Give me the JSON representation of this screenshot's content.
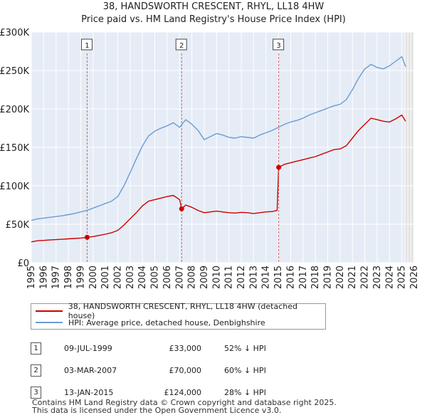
{
  "title_line1": "38, HANDSWORTH CRESCENT, RHYL, LL18 4HW",
  "title_line2": "Price paid vs. HM Land Registry's House Price Index (HPI)",
  "legend": {
    "property_label": "38, HANDSWORTH CRESCENT, RHYL, LL18 4HW (detached house)",
    "hpi_label": "HPI: Average price, detached house, Denbighshire"
  },
  "colors": {
    "property": "#cc0000",
    "hpi": "#6b9bd2",
    "shade": "#e5ecf6",
    "grid": "#ffffff"
  },
  "sales": [
    {
      "num": "1",
      "date": "09-JUL-1999",
      "price": "£33,000",
      "hpi_rel": "52% ↓ HPI"
    },
    {
      "num": "2",
      "date": "03-MAR-2007",
      "price": "£70,000",
      "hpi_rel": "60% ↓ HPI"
    },
    {
      "num": "3",
      "date": "13-JAN-2015",
      "price": "£124,000",
      "hpi_rel": "28% ↓ HPI"
    }
  ],
  "footer": {
    "line1": "Contains HM Land Registry data © Crown copyright and database right 2025.",
    "line2": "This data is licensed under the Open Government Licence v3.0."
  },
  "chart_data": {
    "type": "line",
    "title": "38, HANDSWORTH CRESCENT, RHYL, LL18 4HW — Price paid vs. HM Land Registry's House Price Index (HPI)",
    "xlabel": "",
    "ylabel": "",
    "xlim": [
      1995,
      2026
    ],
    "ylim": [
      0,
      300000
    ],
    "x_ticks": [
      1995,
      1996,
      1997,
      1998,
      1999,
      2000,
      2001,
      2002,
      2003,
      2004,
      2005,
      2006,
      2007,
      2008,
      2009,
      2010,
      2011,
      2012,
      2013,
      2014,
      2015,
      2016,
      2017,
      2018,
      2019,
      2020,
      2021,
      2022,
      2023,
      2024,
      2025,
      2026
    ],
    "y_ticks": [
      {
        "value": 0,
        "label": "£0"
      },
      {
        "value": 50000,
        "label": "£50K"
      },
      {
        "value": 100000,
        "label": "£100K"
      },
      {
        "value": 150000,
        "label": "£150K"
      },
      {
        "value": 200000,
        "label": "£200K"
      },
      {
        "value": 250000,
        "label": "£250K"
      },
      {
        "value": 300000,
        "label": "£300K"
      }
    ],
    "forecast_start": 2025.2,
    "series": [
      {
        "name": "HPI: Average price, detached house, Denbighshire",
        "x": [
          1995,
          1995.5,
          1996,
          1996.5,
          1997,
          1997.5,
          1998,
          1998.5,
          1999,
          1999.5,
          2000,
          2000.5,
          2001,
          2001.5,
          2002,
          2002.5,
          2003,
          2003.5,
          2004,
          2004.5,
          2005,
          2005.5,
          2006,
          2006.5,
          2007,
          2007.5,
          2008,
          2008.5,
          2009,
          2009.5,
          2010,
          2010.5,
          2011,
          2011.5,
          2012,
          2012.5,
          2013,
          2013.5,
          2014,
          2014.5,
          2015,
          2015.5,
          2016,
          2016.5,
          2017,
          2017.5,
          2018,
          2018.5,
          2019,
          2019.5,
          2020,
          2020.5,
          2021,
          2021.5,
          2022,
          2022.5,
          2023,
          2023.5,
          2024,
          2024.5,
          2025,
          2025.3
        ],
        "values": [
          55000,
          57000,
          58000,
          59000,
          60000,
          61000,
          62500,
          64000,
          66000,
          68000,
          71000,
          74000,
          77000,
          80000,
          86000,
          100000,
          117000,
          135000,
          152000,
          165000,
          171000,
          175000,
          178000,
          182000,
          176000,
          186000,
          180000,
          172000,
          160000,
          164000,
          168000,
          166000,
          163000,
          162000,
          164000,
          163000,
          162000,
          166000,
          169000,
          172000,
          176000,
          180000,
          183000,
          185000,
          188000,
          192000,
          195000,
          198000,
          201000,
          204000,
          206000,
          212000,
          225000,
          240000,
          252000,
          258000,
          254000,
          252000,
          256000,
          262000,
          268000,
          255000
        ]
      },
      {
        "name": "38, HANDSWORTH CRESCENT, RHYL, LL18 4HW (detached house)",
        "x": [
          1995,
          1995.5,
          1996,
          1996.5,
          1997,
          1997.5,
          1998,
          1998.5,
          1999,
          1999.52,
          2000,
          2000.5,
          2001,
          2001.5,
          2002,
          2002.5,
          2003,
          2003.5,
          2004,
          2004.5,
          2005,
          2005.5,
          2006,
          2006.5,
          2007,
          2007.17,
          2007.5,
          2008,
          2008.5,
          2009,
          2009.5,
          2010,
          2010.5,
          2011,
          2011.5,
          2012,
          2012.5,
          2013,
          2013.5,
          2014,
          2014.5,
          2014.9,
          2015.03,
          2015.5,
          2016,
          2016.5,
          2017,
          2017.5,
          2018,
          2018.5,
          2019,
          2019.5,
          2020,
          2020.5,
          2021,
          2021.5,
          2022,
          2022.5,
          2023,
          2023.5,
          2024,
          2024.5,
          2025,
          2025.3
        ],
        "values": [
          27000,
          28500,
          29000,
          29500,
          30000,
          30500,
          31000,
          31500,
          32000,
          33000,
          34000,
          35500,
          37000,
          39000,
          42000,
          49000,
          57000,
          65000,
          74000,
          80000,
          82000,
          84000,
          86000,
          87500,
          82000,
          70000,
          75000,
          72000,
          68000,
          65000,
          66000,
          67000,
          66000,
          65000,
          64500,
          65500,
          65000,
          64000,
          65000,
          66000,
          66500,
          68000,
          124000,
          128000,
          130000,
          132000,
          134000,
          136000,
          138000,
          141000,
          144000,
          147000,
          148000,
          152000,
          162000,
          172000,
          180000,
          188000,
          186000,
          184000,
          183000,
          187000,
          192000,
          184000
        ]
      }
    ],
    "sales_markers": [
      {
        "label": "1",
        "x": 1999.52,
        "value": 33000
      },
      {
        "label": "2",
        "x": 2007.17,
        "value": 70000
      },
      {
        "label": "3",
        "x": 2015.03,
        "value": 124000
      }
    ]
  }
}
